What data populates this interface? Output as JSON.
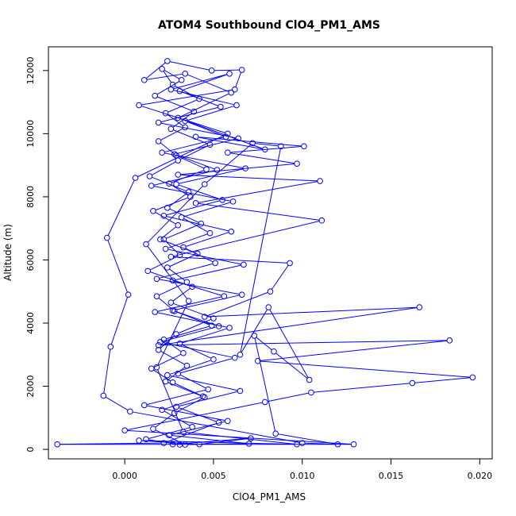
{
  "chart_data": {
    "type": "scatter",
    "title": "ATOM4 Southbound ClO4_PM1_AMS",
    "xlabel": "ClO4_PM1_AMS",
    "ylabel": "Altitude (m)",
    "xlim": [
      -0.0043,
      0.0207
    ],
    "ylim": [
      -300,
      12750
    ],
    "x_ticks": [
      0.0,
      0.005,
      0.01,
      0.015,
      0.02
    ],
    "x_tick_labels": [
      "0.000",
      "0.005",
      "0.010",
      "0.015",
      "0.020"
    ],
    "y_ticks": [
      0,
      2000,
      4000,
      6000,
      8000,
      10000,
      12000
    ],
    "y_tick_labels": [
      "0",
      "2000",
      "4000",
      "6000",
      "8000",
      "10000",
      "12000"
    ],
    "series_color": "#0000ff",
    "marker": "open-circle",
    "connected": true,
    "series": [
      {
        "name": "ATOM4 Southbound",
        "points": [
          [
            0.0031,
            150
          ],
          [
            0.0012,
            320
          ],
          [
            0.0038,
            710
          ],
          [
            0.0021,
            1250
          ],
          [
            0.0044,
            1680
          ],
          [
            0.0027,
            2120
          ],
          [
            0.0015,
            2560
          ],
          [
            0.0033,
            3050
          ],
          [
            0.0022,
            3480
          ],
          [
            0.0049,
            3920
          ],
          [
            0.0028,
            4380
          ],
          [
            0.0018,
            4850
          ],
          [
            0.0035,
            5300
          ],
          [
            0.0024,
            5760
          ],
          [
            0.0041,
            6200
          ],
          [
            0.002,
            6650
          ],
          [
            0.003,
            7100
          ],
          [
            0.0016,
            7550
          ],
          [
            0.0037,
            8000
          ],
          [
            0.0025,
            8420
          ],
          [
            0.0046,
            8870
          ],
          [
            0.0029,
            9310
          ],
          [
            0.0019,
            9760
          ],
          [
            0.0034,
            10200
          ],
          [
            0.0023,
            10650
          ],
          [
            0.0042,
            11100
          ],
          [
            0.0027,
            11550
          ],
          [
            0.0021,
            12050
          ],
          [
            0.0032,
            11700
          ],
          [
            0.0017,
            11200
          ],
          [
            0.0039,
            10700
          ],
          [
            0.0026,
            10150
          ],
          [
            0.0048,
            9650
          ],
          [
            0.003,
            9150
          ],
          [
            0.0014,
            8650
          ],
          [
            0.0036,
            8150
          ],
          [
            0.0024,
            7650
          ],
          [
            0.0043,
            7150
          ],
          [
            0.0022,
            6650
          ],
          [
            0.0031,
            6150
          ],
          [
            0.0013,
            5650
          ],
          [
            0.0038,
            5150
          ],
          [
            0.0026,
            4650
          ],
          [
            0.005,
            4150
          ],
          [
            0.0029,
            3650
          ],
          [
            0.0019,
            3150
          ],
          [
            0.0035,
            2650
          ],
          [
            0.0023,
            2150
          ],
          [
            0.0045,
            1650
          ],
          [
            0.0028,
            1150
          ],
          [
            0.0016,
            650
          ],
          [
            0.0034,
            150
          ],
          [
            0.007,
            180
          ],
          [
            0.0025,
            450
          ],
          [
            0.0058,
            900
          ],
          [
            0.0011,
            1400
          ],
          [
            0.0047,
            1900
          ],
          [
            0.003,
            2400
          ],
          [
            0.0062,
            2900
          ],
          [
            0.002,
            3400
          ],
          [
            0.0053,
            3900
          ],
          [
            0.0027,
            4400
          ],
          [
            0.0066,
            4900
          ],
          [
            0.0018,
            5400
          ],
          [
            0.0051,
            5900
          ],
          [
            0.0033,
            6400
          ],
          [
            0.006,
            6900
          ],
          [
            0.0022,
            7400
          ],
          [
            0.0055,
            7900
          ],
          [
            0.0029,
            8400
          ],
          [
            0.0068,
            8900
          ],
          [
            0.0021,
            9400
          ],
          [
            0.0057,
            9900
          ],
          [
            0.0034,
            10400
          ],
          [
            0.0063,
            10900
          ],
          [
            0.0026,
            11400
          ],
          [
            0.0059,
            11900
          ],
          [
            0.0031,
            11350
          ],
          [
            0.0054,
            10850
          ],
          [
            0.0019,
            10350
          ],
          [
            0.0064,
            9850
          ],
          [
            0.0028,
            9350
          ],
          [
            0.0052,
            8850
          ],
          [
            0.0015,
            8350
          ],
          [
            0.0061,
            7850
          ],
          [
            0.0032,
            7350
          ],
          [
            0.0048,
            6850
          ],
          [
            0.0023,
            6350
          ],
          [
            0.0067,
            5850
          ],
          [
            0.0027,
            5350
          ],
          [
            0.0056,
            4850
          ],
          [
            0.0017,
            4350
          ],
          [
            0.0059,
            3850
          ],
          [
            0.0031,
            3350
          ],
          [
            0.005,
            2850
          ],
          [
            0.0024,
            2350
          ],
          [
            0.0065,
            1850
          ],
          [
            0.0029,
            1350
          ],
          [
            0.0053,
            850
          ],
          [
            0.0022,
            200
          ],
          [
            -0.0038,
            160
          ],
          [
            0.0129,
            160
          ],
          [
            0.0,
            600
          ],
          [
            0.0079,
            1500
          ],
          [
            0.0105,
            1800
          ],
          [
            0.0162,
            2100
          ],
          [
            0.0196,
            2280
          ],
          [
            0.0075,
            2800
          ],
          [
            0.0183,
            3450
          ],
          [
            0.0019,
            3300
          ],
          [
            0.0166,
            4500
          ],
          [
            0.0045,
            4200
          ],
          [
            0.0082,
            5000
          ],
          [
            0.0093,
            5900
          ],
          [
            0.0026,
            6100
          ],
          [
            0.0111,
            7250
          ],
          [
            0.004,
            7800
          ],
          [
            0.011,
            8500
          ],
          [
            0.003,
            8700
          ],
          [
            0.0097,
            9050
          ],
          [
            0.0058,
            9400
          ],
          [
            0.0101,
            9600
          ],
          [
            0.004,
            9900
          ],
          [
            0.0079,
            9500
          ],
          [
            0.003,
            10500
          ],
          [
            0.006,
            11300
          ],
          [
            0.0034,
            11900
          ],
          [
            0.0011,
            11700
          ],
          [
            0.0024,
            12300
          ],
          [
            0.0049,
            12000
          ],
          [
            0.0066,
            12020
          ],
          [
            0.0062,
            11400
          ],
          [
            0.0008,
            10900
          ],
          [
            0.0058,
            10000
          ],
          [
            0.0006,
            8600
          ],
          [
            -0.001,
            6700
          ],
          [
            0.0002,
            4900
          ],
          [
            -0.0008,
            3250
          ],
          [
            -0.0012,
            1700
          ],
          [
            0.0003,
            1200
          ],
          [
            0.01,
            200
          ],
          [
            0.012,
            160
          ],
          [
            0.0085,
            500
          ],
          [
            0.0073,
            3600
          ],
          [
            0.0084,
            3100
          ],
          [
            0.0104,
            2200
          ],
          [
            0.0081,
            4500
          ],
          [
            0.0065,
            3000
          ],
          [
            0.0088,
            9600
          ],
          [
            0.0072,
            9700
          ],
          [
            0.0045,
            8400
          ],
          [
            0.0012,
            6500
          ],
          [
            0.0036,
            4700
          ],
          [
            0.0018,
            2600
          ],
          [
            0.0033,
            550
          ],
          [
            0.0097,
            160
          ],
          [
            0.0008,
            280
          ],
          [
            0.0042,
            160
          ],
          [
            0.0071,
            350
          ],
          [
            0.0027,
            160
          ]
        ]
      }
    ]
  }
}
